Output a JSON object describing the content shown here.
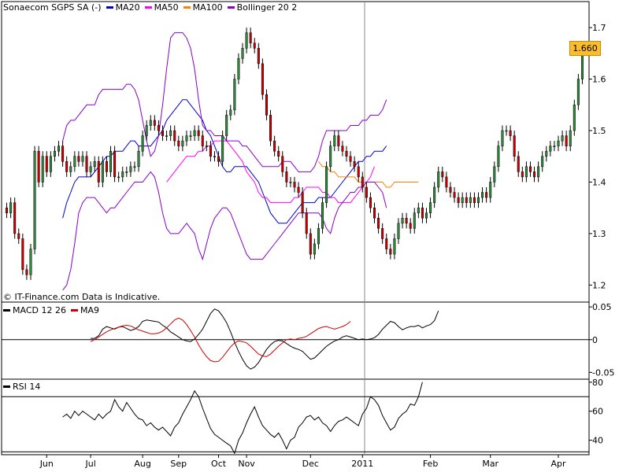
{
  "colors": {
    "up": "#2e8b3a",
    "down": "#cc0000",
    "ma20": "#0000cc",
    "ma50": "#ff00ff",
    "ma100": "#ff8000",
    "bollinger": "#8800cc",
    "macd": "#000000",
    "macd_signal": "#cc0000",
    "rsi": "#000000",
    "badge": "#fbbd2d"
  },
  "legend": {
    "main": [
      {
        "label": "Sonaecom SGPS SA (-)",
        "color": ""
      },
      {
        "label": "MA20",
        "color": "#0000cc"
      },
      {
        "label": "MA50",
        "color": "#ff00ff"
      },
      {
        "label": "MA100",
        "color": "#ff8000"
      },
      {
        "label": "Bollinger 20 2",
        "color": "#8800cc"
      }
    ],
    "macd": [
      {
        "label": "MACD 12 26",
        "color": "#000000"
      },
      {
        "label": "MA9",
        "color": "#cc0000"
      }
    ],
    "rsi": [
      {
        "label": "RSI 14",
        "color": "#000000"
      }
    ]
  },
  "source_note": "© IT-Finance.com Data is Indicative.",
  "last_price_badge": "1.660",
  "chart_data": [
    {
      "type": "candlestick",
      "title": "Sonaecom SGPS SA (-)",
      "ylim": [
        1.17,
        1.72
      ],
      "y_ticks": [
        "1.2",
        "1.3",
        "1.4",
        "1.5",
        "1.6",
        "1.7"
      ],
      "x_tick_labels": [
        "Jun",
        "Jul",
        "Aug",
        "Sep",
        "Oct",
        "Nov",
        "Dec",
        "2011",
        "Feb",
        "Mar",
        "Apr"
      ],
      "session_count": 145,
      "x_tick_sessions": [
        10,
        21,
        34,
        43,
        53,
        60,
        76,
        89,
        106,
        121,
        138
      ],
      "grid": false,
      "close_series": [
        1.34,
        1.36,
        1.3,
        1.29,
        1.23,
        1.22,
        1.27,
        1.46,
        1.4,
        1.45,
        1.42,
        1.45,
        1.46,
        1.47,
        1.44,
        1.42,
        1.43,
        1.45,
        1.44,
        1.45,
        1.42,
        1.43,
        1.44,
        1.4,
        1.44,
        1.42,
        1.46,
        1.41,
        1.41,
        1.42,
        1.42,
        1.43,
        1.43,
        1.46,
        1.49,
        1.51,
        1.52,
        1.51,
        1.5,
        1.49,
        1.49,
        1.5,
        1.48,
        1.47,
        1.48,
        1.49,
        1.49,
        1.5,
        1.49,
        1.47,
        1.47,
        1.45,
        1.45,
        1.44,
        1.49,
        1.53,
        1.54,
        1.6,
        1.64,
        1.66,
        1.69,
        1.67,
        1.66,
        1.63,
        1.57,
        1.53,
        1.48,
        1.46,
        1.45,
        1.42,
        1.4,
        1.4,
        1.39,
        1.38,
        1.34,
        1.3,
        1.26,
        1.28,
        1.31,
        1.36,
        1.43,
        1.47,
        1.49,
        1.47,
        1.46,
        1.45,
        1.44,
        1.43,
        1.41,
        1.39,
        1.37,
        1.35,
        1.33,
        1.31,
        1.29,
        1.27,
        1.26,
        1.29,
        1.32,
        1.33,
        1.32,
        1.31,
        1.34,
        1.35,
        1.33,
        1.34,
        1.36,
        1.39,
        1.42,
        1.41,
        1.39,
        1.38,
        1.37,
        1.36,
        1.37,
        1.36,
        1.37,
        1.36,
        1.37,
        1.38,
        1.37,
        1.4,
        1.43,
        1.47,
        1.5,
        1.5,
        1.49,
        1.45,
        1.42,
        1.41,
        1.43,
        1.42,
        1.41,
        1.43,
        1.45,
        1.46,
        1.47,
        1.47,
        1.48,
        1.49,
        1.47,
        1.5,
        1.55,
        1.6,
        1.66
      ],
      "series": [
        {
          "name": "MA20",
          "start_session": 14,
          "values": [
            1.33,
            1.36,
            1.38,
            1.4,
            1.41,
            1.41,
            1.41,
            1.41,
            1.42,
            1.43,
            1.44,
            1.45,
            1.45,
            1.46,
            1.46,
            1.46,
            1.47,
            1.48,
            1.48,
            1.47,
            1.47,
            1.47,
            1.47,
            1.48,
            1.49,
            1.5,
            1.52,
            1.53,
            1.54,
            1.55,
            1.56,
            1.56,
            1.55,
            1.54,
            1.53,
            1.52,
            1.5,
            1.49,
            1.47,
            1.45,
            1.43,
            1.42,
            1.42,
            1.43,
            1.43,
            1.43,
            1.43,
            1.42,
            1.41,
            1.4,
            1.38,
            1.36,
            1.34,
            1.33,
            1.32,
            1.32,
            1.32,
            1.33,
            1.34,
            1.35,
            1.36,
            1.36,
            1.36,
            1.36,
            1.37,
            1.37,
            1.37,
            1.37,
            1.38,
            1.39,
            1.4,
            1.41,
            1.42,
            1.43,
            1.44,
            1.44,
            1.45,
            1.45,
            1.46,
            1.46,
            1.46,
            1.47
          ]
        },
        {
          "name": "MA50",
          "start_session": 40,
          "values": [
            1.4,
            1.41,
            1.42,
            1.43,
            1.44,
            1.45,
            1.45,
            1.45,
            1.46,
            1.46,
            1.47,
            1.47,
            1.48,
            1.48,
            1.48,
            1.48,
            1.47,
            1.46,
            1.45,
            1.44,
            1.42,
            1.41,
            1.4,
            1.38,
            1.37,
            1.37,
            1.36,
            1.36,
            1.36,
            1.36,
            1.36,
            1.36,
            1.37,
            1.37,
            1.38,
            1.39,
            1.39,
            1.39,
            1.39,
            1.38,
            1.38,
            1.37,
            1.37,
            1.36,
            1.36,
            1.36,
            1.36,
            1.37,
            1.38,
            1.39,
            1.4,
            1.41,
            1.43
          ]
        },
        {
          "name": "MA100",
          "start_session": 78,
          "values": [
            1.44,
            1.43,
            1.43,
            1.42,
            1.42,
            1.41,
            1.41,
            1.41,
            1.41,
            1.41,
            1.4,
            1.4,
            1.4,
            1.4,
            1.4,
            1.4,
            1.4,
            1.39,
            1.39,
            1.4,
            1.4,
            1.4,
            1.4,
            1.4,
            1.4,
            1.4
          ]
        },
        {
          "name": "Bollinger 20 2",
          "start_session": 14,
          "upper": [
            1.48,
            1.51,
            1.52,
            1.52,
            1.53,
            1.54,
            1.55,
            1.55,
            1.55,
            1.57,
            1.58,
            1.58,
            1.58,
            1.58,
            1.58,
            1.58,
            1.59,
            1.59,
            1.58,
            1.56,
            1.52,
            1.48,
            1.45,
            1.46,
            1.49,
            1.55,
            1.62,
            1.68,
            1.69,
            1.69,
            1.69,
            1.68,
            1.66,
            1.62,
            1.56,
            1.51,
            1.5,
            1.5,
            1.49,
            1.49,
            1.49,
            1.48,
            1.48,
            1.48,
            1.48,
            1.47,
            1.47,
            1.46,
            1.45,
            1.44,
            1.43,
            1.43,
            1.43,
            1.43,
            1.43,
            1.44,
            1.44,
            1.44,
            1.43,
            1.42,
            1.42,
            1.42,
            1.42,
            1.43,
            1.45,
            1.48,
            1.5,
            1.5,
            1.5,
            1.5,
            1.5,
            1.5,
            1.51,
            1.51,
            1.51,
            1.52,
            1.52,
            1.53,
            1.53,
            1.53,
            1.54,
            1.56
          ],
          "lower": [
            1.19,
            1.2,
            1.23,
            1.28,
            1.34,
            1.36,
            1.37,
            1.37,
            1.37,
            1.36,
            1.35,
            1.34,
            1.35,
            1.35,
            1.36,
            1.37,
            1.38,
            1.39,
            1.4,
            1.4,
            1.4,
            1.41,
            1.42,
            1.41,
            1.38,
            1.34,
            1.31,
            1.3,
            1.3,
            1.3,
            1.31,
            1.32,
            1.31,
            1.3,
            1.27,
            1.25,
            1.28,
            1.31,
            1.33,
            1.34,
            1.35,
            1.35,
            1.34,
            1.32,
            1.3,
            1.28,
            1.26,
            1.25,
            1.25,
            1.25,
            1.25,
            1.26,
            1.27,
            1.28,
            1.29,
            1.3,
            1.31,
            1.32,
            1.33,
            1.34,
            1.34,
            1.34,
            1.34,
            1.34,
            1.34,
            1.33,
            1.31,
            1.3,
            1.33,
            1.35,
            1.36,
            1.37,
            1.38,
            1.38,
            1.39,
            1.39,
            1.4,
            1.4,
            1.4,
            1.39,
            1.38,
            1.35
          ]
        }
      ]
    },
    {
      "type": "line",
      "title": "MACD 12 26",
      "ylim": [
        -0.058,
        0.055
      ],
      "y_ticks": [
        "-0.05",
        "0",
        "0.05"
      ],
      "reference_lines": [
        0
      ],
      "series": [
        {
          "name": "MACD 12 26",
          "start_session": 21,
          "values": [
            0.002,
            0.002,
            0.006,
            0.016,
            0.02,
            0.018,
            0.016,
            0.019,
            0.02,
            0.017,
            0.014,
            0.016,
            0.02,
            0.028,
            0.03,
            0.029,
            0.028,
            0.027,
            0.022,
            0.018,
            0.012,
            0.008,
            0.004,
            0.0,
            -0.002,
            -0.003,
            0.001,
            0.008,
            0.016,
            0.028,
            0.04,
            0.047,
            0.044,
            0.036,
            0.026,
            0.012,
            -0.004,
            -0.018,
            -0.03,
            -0.04,
            -0.045,
            -0.042,
            -0.035,
            -0.025,
            -0.015,
            -0.008,
            -0.003,
            -0.001,
            -0.002,
            -0.006,
            -0.01,
            -0.013,
            -0.015,
            -0.018,
            -0.024,
            -0.03,
            -0.028,
            -0.022,
            -0.016,
            -0.01,
            -0.006,
            -0.002,
            0.0,
            0.004,
            0.006,
            0.004,
            0.002,
            0.0,
            0.001,
            0.0,
            0.001,
            0.003,
            0.008,
            0.016,
            0.022,
            0.028,
            0.026,
            0.02,
            0.015,
            0.018,
            0.02,
            0.02,
            0.022,
            0.018,
            0.021,
            0.023,
            0.029,
            0.044
          ]
        },
        {
          "name": "MA9",
          "start_session": 21,
          "values": [
            -0.003,
            0.0,
            0.004,
            0.008,
            0.012,
            0.015,
            0.017,
            0.019,
            0.021,
            0.022,
            0.021,
            0.018,
            0.015,
            0.013,
            0.011,
            0.009,
            0.009,
            0.01,
            0.013,
            0.018,
            0.024,
            0.03,
            0.033,
            0.03,
            0.023,
            0.014,
            0.004,
            -0.008,
            -0.018,
            -0.026,
            -0.032,
            -0.034,
            -0.033,
            -0.027,
            -0.019,
            -0.011,
            -0.005,
            -0.002,
            -0.003,
            -0.005,
            -0.01,
            -0.016,
            -0.022,
            -0.025,
            -0.026,
            -0.022,
            -0.016,
            -0.01,
            -0.005,
            0.0,
            0.001,
            0.0,
            0.002,
            0.003,
            0.005,
            0.009,
            0.013,
            0.017,
            0.019,
            0.02,
            0.018,
            0.016,
            0.018,
            0.02,
            0.023,
            0.028
          ]
        }
      ]
    },
    {
      "type": "line",
      "title": "RSI 14",
      "ylim": [
        30,
        81
      ],
      "y_ticks": [
        "40",
        "60",
        "80"
      ],
      "reference_lines": [
        32,
        70
      ],
      "series": [
        {
          "name": "RSI 14",
          "start_session": 14,
          "values": [
            56,
            58,
            55,
            60,
            57,
            60,
            58,
            56,
            54,
            58,
            55,
            58,
            60,
            68,
            63,
            60,
            66,
            62,
            58,
            55,
            54,
            50,
            52,
            49,
            47,
            49,
            46,
            43,
            49,
            52,
            58,
            63,
            68,
            74,
            70,
            62,
            55,
            48,
            44,
            42,
            40,
            38,
            36,
            31,
            40,
            45,
            52,
            58,
            63,
            56,
            50,
            47,
            44,
            42,
            45,
            40,
            34,
            40,
            42,
            49,
            52,
            56,
            57,
            54,
            56,
            52,
            50,
            46,
            50,
            53,
            54,
            56,
            54,
            52,
            50,
            58,
            62,
            70,
            68,
            64,
            57,
            52,
            47,
            49,
            55,
            58,
            60,
            65,
            64,
            70,
            80
          ]
        }
      ]
    }
  ]
}
